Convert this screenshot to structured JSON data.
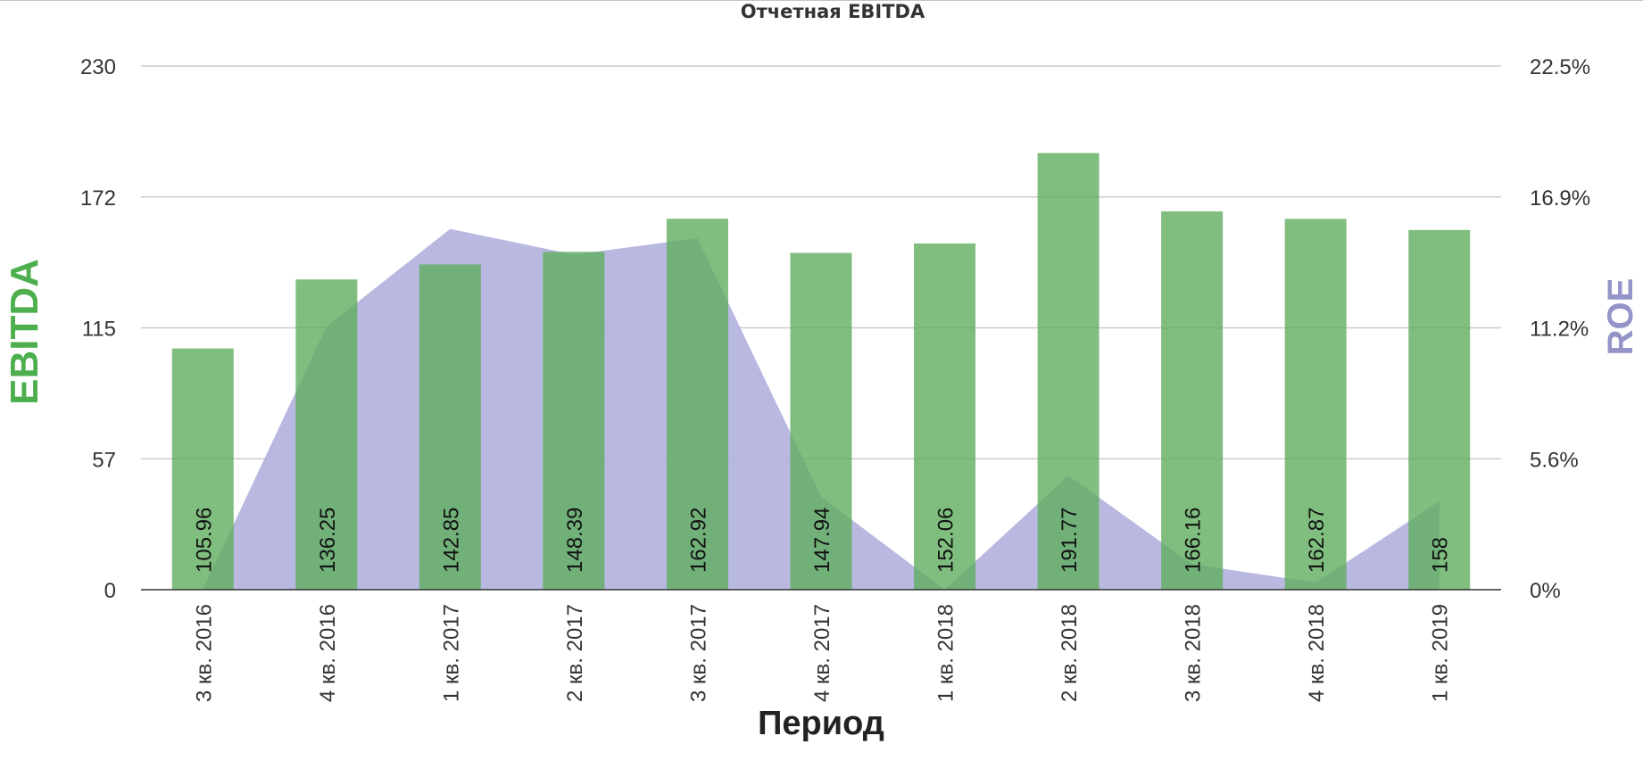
{
  "chart_data": {
    "type": "bar",
    "title": "Отчетная EBITDA",
    "xlabel": "Период",
    "ylabel": "EBITDA",
    "y2label": "ROE",
    "categories": [
      "3 кв. 2016",
      "4 кв. 2016",
      "1 кв. 2017",
      "2 кв. 2017",
      "3 кв. 2017",
      "4 кв. 2017",
      "1 кв. 2018",
      "2 кв. 2018",
      "3 кв. 2018",
      "4 кв. 2018",
      "1 кв. 2019"
    ],
    "series": [
      {
        "type": "bar",
        "axis": "left",
        "values": [
          105.96,
          136.25,
          142.85,
          148.39,
          162.92,
          147.94,
          152.06,
          191.77,
          166.16,
          162.87,
          158
        ],
        "data_labels": [
          "105.96",
          "136.25",
          "142.85",
          "148.39",
          "162.92",
          "147.94",
          "152.06",
          "191.77",
          "166.16",
          "162.87",
          "158"
        ],
        "color": "#5fae5f"
      },
      {
        "type": "area",
        "axis": "right",
        "values": [
          0.0,
          11.3,
          15.5,
          14.4,
          15.1,
          4.0,
          0.0,
          4.9,
          1.1,
          0.3,
          3.8
        ],
        "color": "#b0b0dd"
      }
    ],
    "yticks": [
      "0",
      "57",
      "115",
      "172",
      "230"
    ],
    "ylim": [
      0,
      230
    ],
    "y2ticks": [
      "0%",
      "5.6%",
      "11.2%",
      "16.9%",
      "22.5%"
    ],
    "y2lim": [
      0,
      22.5
    ],
    "grid": true,
    "colors": {
      "ebitda_axis_title": "#4cae4c",
      "roe_axis_title": "#9494c8",
      "grid": "#cccccc"
    }
  }
}
